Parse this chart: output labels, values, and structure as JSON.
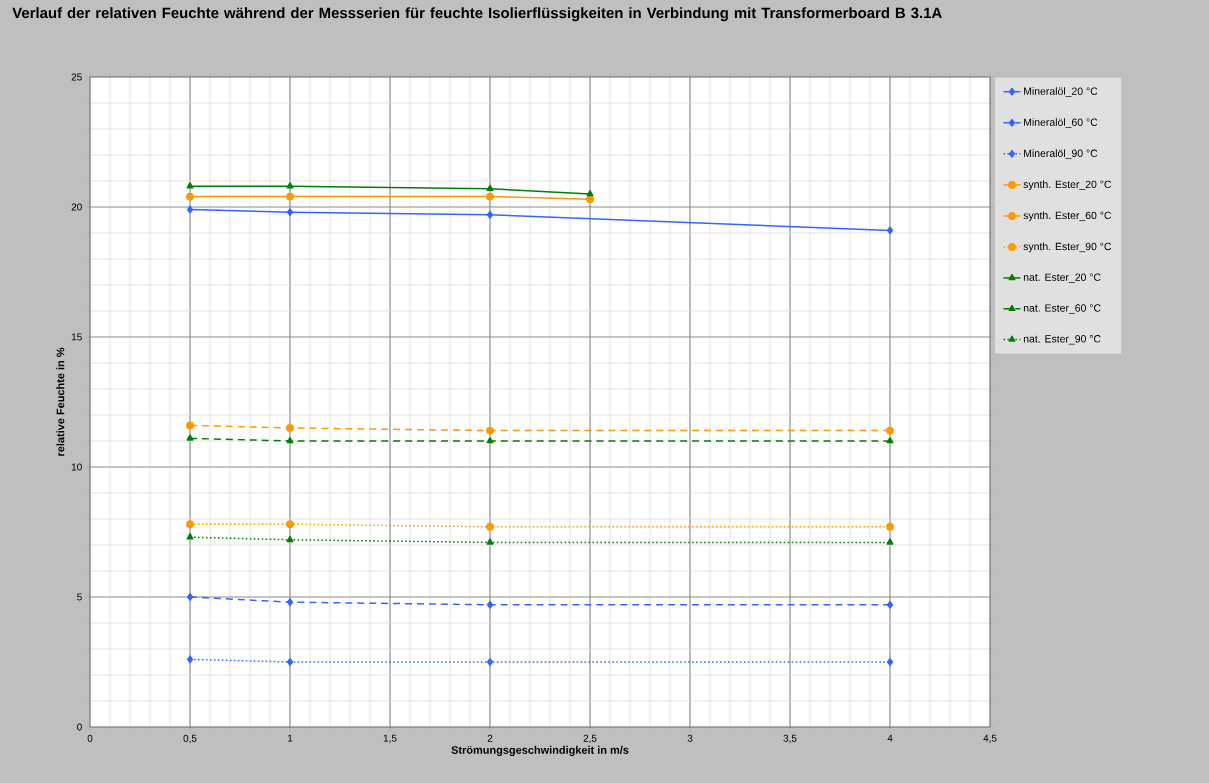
{
  "chart_data": {
    "type": "line",
    "title": "Verlauf der relativen Feuchte während der Messserien für feuchte Isolierflüssigkeiten in Verbindung mit Transformerboard B 3.1A",
    "xlabel": "Strömungsgeschwindigkeit in m/s",
    "ylabel": "relative Feuchte in %",
    "xlim": [
      0,
      4.5
    ],
    "ylim": [
      0,
      25
    ],
    "xticks": [
      0,
      {
        "value": 0.5,
        "label": "0,5"
      },
      1,
      {
        "value": 1.5,
        "label": "1,5"
      },
      2,
      {
        "value": 2.5,
        "label": "2,5"
      },
      3,
      {
        "value": 3.5,
        "label": "3,5"
      },
      4,
      {
        "value": 4.5,
        "label": "4,5"
      }
    ],
    "yticks": [
      0,
      5,
      10,
      15,
      20,
      25
    ],
    "grid": true,
    "legend": "right",
    "series": [
      {
        "name": "Mineralöl_20 °C",
        "color": "#3366ff",
        "marker": "diamond",
        "line_style": "solid",
        "x": [
          0.5,
          1,
          2,
          4
        ],
        "values": [
          19.9,
          19.8,
          19.7,
          19.1
        ]
      },
      {
        "name": "Mineralöl_60 °C",
        "color": "#3366ff",
        "marker": "diamond",
        "line_style": "dashed",
        "x": [
          0.5,
          1,
          2,
          4
        ],
        "values": [
          5.0,
          4.8,
          4.7,
          4.7
        ]
      },
      {
        "name": "Mineralöl_90 °C",
        "color": "#3366ff",
        "marker": "diamond",
        "line_style": "dotted",
        "x": [
          0.5,
          1,
          2,
          4
        ],
        "values": [
          2.6,
          2.5,
          2.5,
          2.5
        ]
      },
      {
        "name": "synth. Ester_20 °C",
        "color": "#ff9900",
        "marker": "circle",
        "line_style": "solid",
        "x": [
          0.5,
          1,
          2,
          2.5
        ],
        "values": [
          20.4,
          20.4,
          20.4,
          20.3
        ]
      },
      {
        "name": "synth. Ester_60 °C",
        "color": "#ff9900",
        "marker": "circle",
        "line_style": "dashed",
        "x": [
          0.5,
          1,
          2,
          4
        ],
        "values": [
          11.6,
          11.5,
          11.4,
          11.4
        ]
      },
      {
        "name": "synth. Ester_90 °C",
        "color": "#ff9900",
        "marker": "circle",
        "line_style": "dotted",
        "x": [
          0.5,
          1,
          2,
          4
        ],
        "values": [
          7.8,
          7.8,
          7.7,
          7.7
        ]
      },
      {
        "name": "nat. Ester_20 °C",
        "color": "#008000",
        "marker": "triangle",
        "line_style": "solid",
        "x": [
          0.5,
          1,
          2,
          2.5
        ],
        "values": [
          20.8,
          20.8,
          20.7,
          20.5
        ]
      },
      {
        "name": "nat. Ester_60 °C",
        "color": "#008000",
        "marker": "triangle",
        "line_style": "dashed",
        "x": [
          0.5,
          1,
          2,
          4
        ],
        "values": [
          11.1,
          11.0,
          11.0,
          11.0
        ]
      },
      {
        "name": "nat. Ester_90 °C",
        "color": "#008000",
        "marker": "triangle",
        "line_style": "dotted",
        "x": [
          0.5,
          1,
          2,
          4
        ],
        "values": [
          7.3,
          7.2,
          7.1,
          7.1
        ]
      }
    ]
  }
}
